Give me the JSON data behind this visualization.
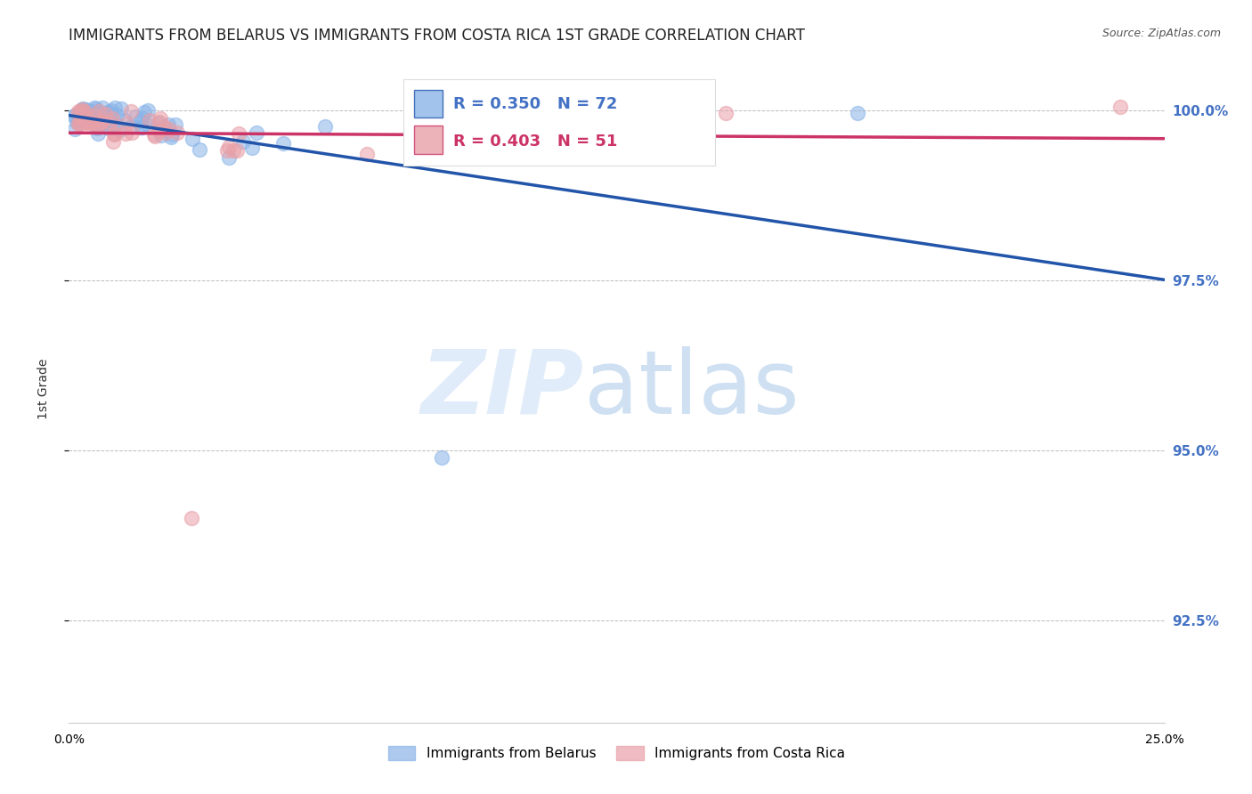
{
  "title": "IMMIGRANTS FROM BELARUS VS IMMIGRANTS FROM COSTA RICA 1ST GRADE CORRELATION CHART",
  "source": "Source: ZipAtlas.com",
  "ylabel": "1st Grade",
  "ytick_labels": [
    "92.5%",
    "95.0%",
    "97.5%",
    "100.0%"
  ],
  "ytick_values": [
    0.925,
    0.95,
    0.975,
    1.0
  ],
  "xmin": 0.0,
  "xmax": 0.25,
  "ymin": 0.91,
  "ymax": 1.008,
  "blue_color": "#8ab4e8",
  "pink_color": "#e8a0a8",
  "blue_line_color": "#2255aa",
  "pink_line_color": "#cc3366",
  "legend_blue_label": "Immigrants from Belarus",
  "legend_pink_label": "Immigrants from Costa Rica",
  "R_blue": 0.35,
  "N_blue": 72,
  "R_pink": 0.403,
  "N_pink": 51,
  "watermark_zip": "ZIP",
  "watermark_atlas": "atlas",
  "grid_color": "#bbbbbb",
  "background_color": "#ffffff",
  "right_axis_color": "#4472c4",
  "title_fontsize": 12,
  "source_fontsize": 9,
  "tick_fontsize": 10
}
